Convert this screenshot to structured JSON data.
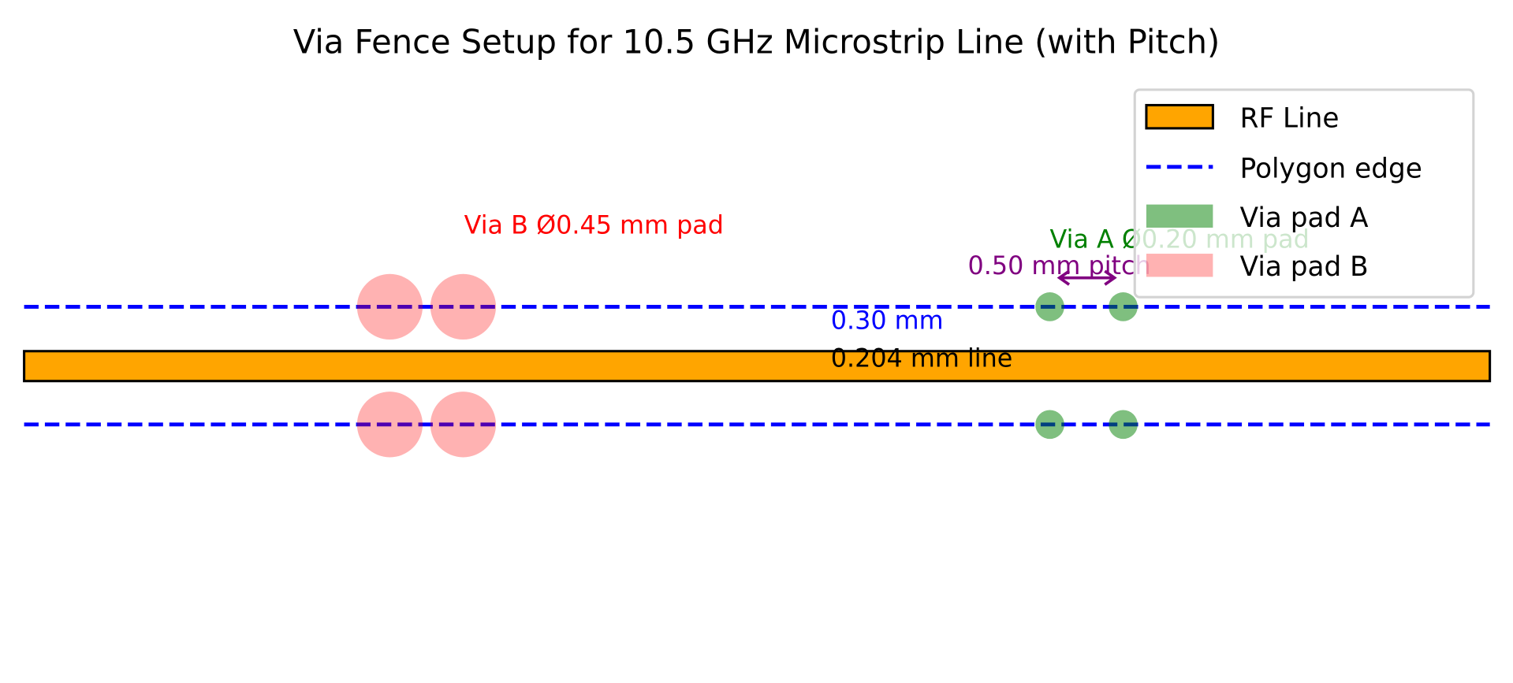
{
  "title": "Via Fence Setup for 10.5 GHz Microstrip Line (with Pitch)",
  "annotations": {
    "via_b": "Via B Ø0.45 mm pad",
    "via_a": "Via A Ø0.20 mm pad",
    "pitch": "0.50 mm pitch",
    "gap": "0.30 mm",
    "line": "0.204 mm line"
  },
  "legend": {
    "placement": "top-right",
    "items": [
      {
        "label": "RF Line",
        "kind": "patch",
        "color": "#ffa500",
        "edge": "#000000"
      },
      {
        "label": "Polygon edge",
        "kind": "dashed-line",
        "color": "#0000ff"
      },
      {
        "label": "Via pad A",
        "kind": "patch",
        "color": "#80c080"
      },
      {
        "label": "Via pad B",
        "kind": "patch",
        "color": "#ffb0b0"
      }
    ]
  },
  "colors": {
    "rf_line": "#ffa500",
    "polygon_edge": "#0000ff",
    "via_a": "#008000",
    "via_b": "#ff0000",
    "pitch": "#800080",
    "gap": "#0000ff"
  },
  "dimensions_mm": {
    "line_width": 0.204,
    "gap": 0.3,
    "via_a_pad": 0.2,
    "via_b_pad": 0.45,
    "pitch": 0.5
  }
}
